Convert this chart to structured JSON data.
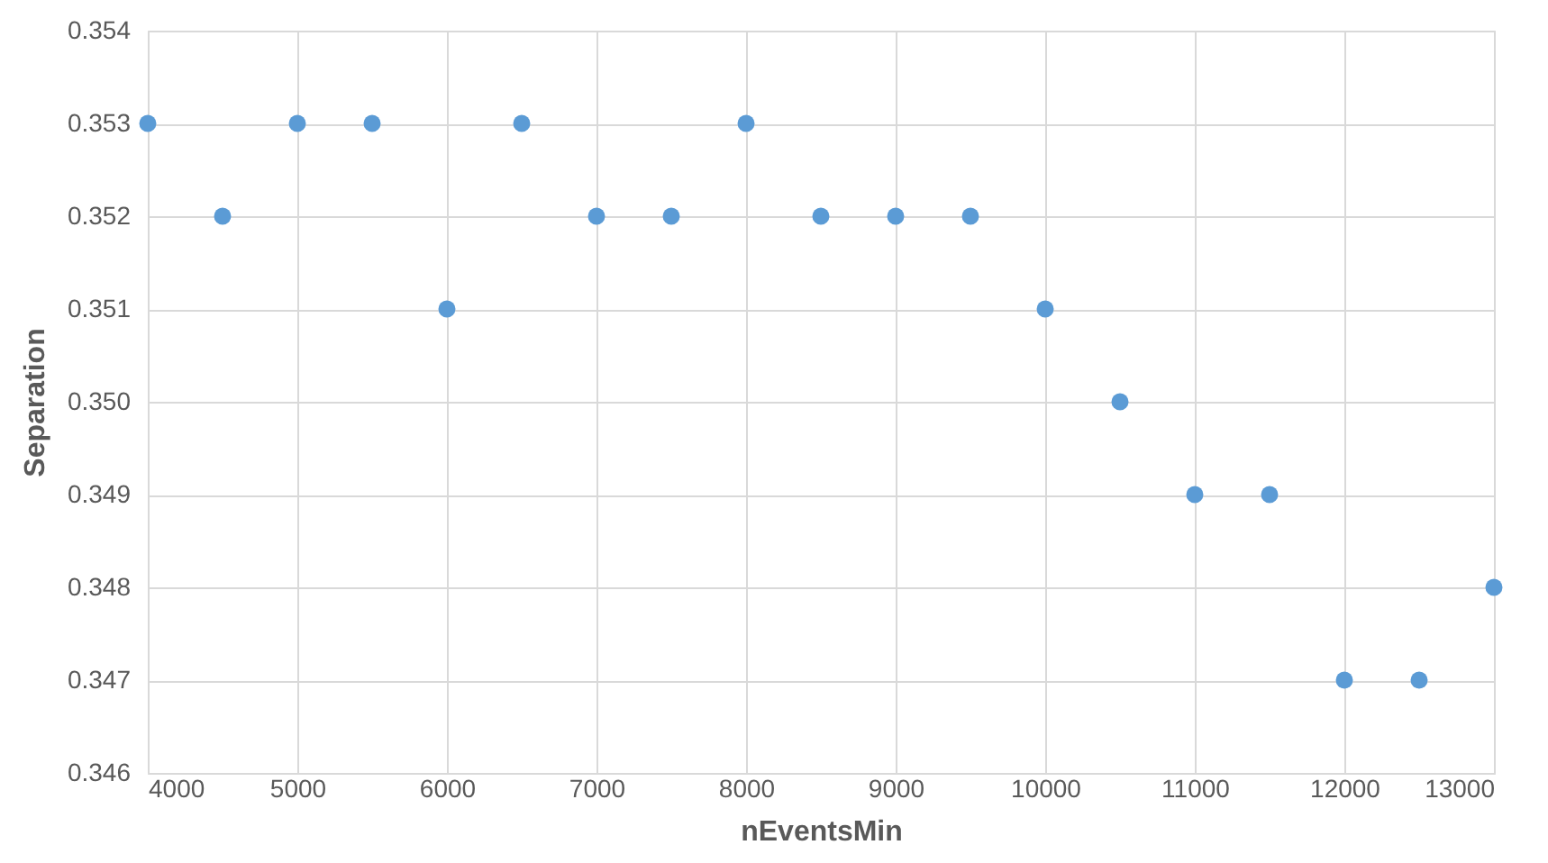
{
  "chart_data": {
    "type": "scatter",
    "xlabel": "nEventsMin",
    "ylabel": "Separation",
    "x": [
      4000,
      4500,
      5000,
      5500,
      6000,
      6500,
      7000,
      7500,
      8000,
      8500,
      9000,
      9500,
      10000,
      10500,
      11000,
      11500,
      12000,
      12500,
      13000
    ],
    "series": [
      {
        "color": "#5b9bd5",
        "values": [
          0.353,
          0.352,
          0.353,
          0.353,
          0.351,
          0.353,
          0.352,
          0.352,
          0.353,
          0.352,
          0.352,
          0.352,
          0.351,
          0.35,
          0.349,
          0.349,
          0.347,
          0.347,
          0.348
        ]
      }
    ],
    "xlim": [
      4000,
      13000
    ],
    "xticks": [
      4000,
      5000,
      6000,
      7000,
      8000,
      9000,
      10000,
      11000,
      12000,
      13000
    ],
    "ylim": [
      0.346,
      0.354
    ],
    "yticks": [
      0.346,
      0.347,
      0.348,
      0.349,
      {
        "value": 0.35,
        "label": "0.350"
      },
      0.351,
      0.352,
      0.353,
      0.354
    ],
    "grid": true,
    "marker": "circle"
  }
}
